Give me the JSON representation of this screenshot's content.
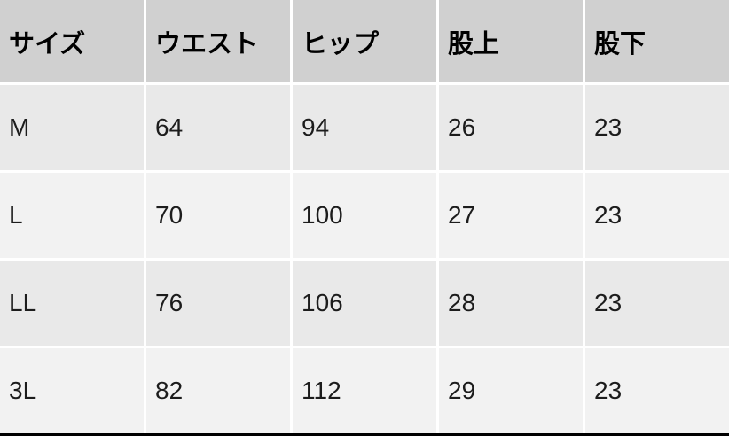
{
  "chart_data": {
    "type": "table",
    "columns": [
      "サイズ",
      "ウエスト",
      "ヒップ",
      "股上",
      "股下"
    ],
    "rows": [
      [
        "M",
        64,
        94,
        26,
        23
      ],
      [
        "L",
        70,
        100,
        27,
        23
      ],
      [
        "LL",
        76,
        106,
        28,
        23
      ],
      [
        "3L",
        82,
        112,
        29,
        23
      ]
    ],
    "layout": {
      "header_row": true,
      "gridlines": "white-gaps",
      "bottom_rule": true
    }
  },
  "table": {
    "columns": [
      "サイズ",
      "ウエスト",
      "ヒップ",
      "股上",
      "股下"
    ],
    "rows": [
      {
        "size": "M",
        "waist": "64",
        "hip": "94",
        "rise": "26",
        "inseam": "23"
      },
      {
        "size": "L",
        "waist": "70",
        "hip": "100",
        "rise": "27",
        "inseam": "23"
      },
      {
        "size": "LL",
        "waist": "76",
        "hip": "106",
        "rise": "28",
        "inseam": "23"
      },
      {
        "size": "3L",
        "waist": "82",
        "hip": "112",
        "rise": "29",
        "inseam": "23"
      }
    ]
  },
  "colors": {
    "header_bg": "#d0d0d0",
    "row_odd_bg": "#e9e9e9",
    "row_even_bg": "#f2f2f2",
    "separator": "#ffffff",
    "bottom_border": "#000000",
    "header_text": "#000000",
    "body_text": "#1c1c1c"
  }
}
